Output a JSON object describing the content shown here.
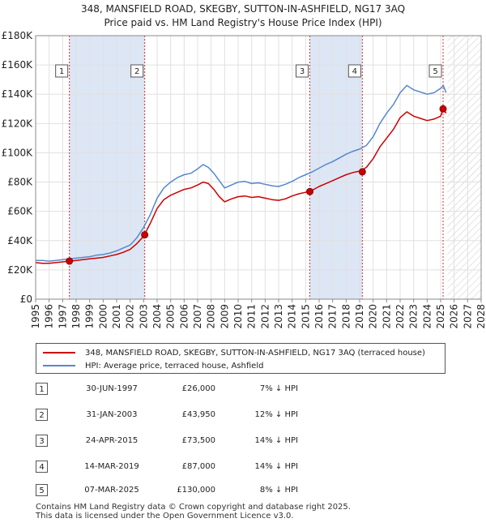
{
  "chart_data": {
    "type": "line",
    "title": "348, MANSFIELD ROAD, SKEGBY, SUTTON-IN-ASHFIELD, NG17 3AQ",
    "subtitle": "Price paid vs. HM Land Registry's House Price Index (HPI)",
    "xlim": [
      1995,
      2028
    ],
    "ylim": [
      0,
      180000
    ],
    "x_ticks": [
      "1995",
      "1996",
      "1997",
      "1998",
      "1999",
      "2000",
      "2001",
      "2002",
      "2003",
      "2004",
      "2005",
      "2006",
      "2007",
      "2008",
      "2009",
      "2010",
      "2011",
      "2012",
      "2013",
      "2014",
      "2015",
      "2016",
      "2017",
      "2018",
      "2019",
      "2020",
      "2021",
      "2022",
      "2023",
      "2024",
      "2025",
      "2026",
      "2027",
      "2028"
    ],
    "y_ticks": [
      {
        "value": 0,
        "label": "£0"
      },
      {
        "value": 20000,
        "label": "£20K"
      },
      {
        "value": 40000,
        "label": "£40K"
      },
      {
        "value": 60000,
        "label": "£60K"
      },
      {
        "value": 80000,
        "label": "£80K"
      },
      {
        "value": 100000,
        "label": "£100K"
      },
      {
        "value": 120000,
        "label": "£120K"
      },
      {
        "value": 140000,
        "label": "£140K"
      },
      {
        "value": 160000,
        "label": "£160K"
      },
      {
        "value": 180000,
        "label": "£180K"
      }
    ],
    "grid": true,
    "shaded_periods": [
      [
        1997.5,
        2003.08
      ],
      [
        2015.31,
        2019.2
      ]
    ],
    "future_hatch_start": 2025.5,
    "series": [
      {
        "name": "348, MANSFIELD ROAD, SKEGBY, SUTTON-IN-ASHFIELD, NG17 3AQ (terraced house)",
        "color": "#cc0000",
        "x": [
          1995.0,
          1995.5,
          1996.0,
          1996.5,
          1997.0,
          1997.5,
          1998.0,
          1998.5,
          1999.0,
          1999.5,
          2000.0,
          2000.5,
          2001.0,
          2001.5,
          2002.0,
          2002.5,
          2003.0,
          2003.5,
          2004.0,
          2004.5,
          2005.0,
          2005.5,
          2006.0,
          2006.5,
          2007.0,
          2007.4,
          2007.8,
          2008.2,
          2008.6,
          2009.0,
          2009.5,
          2010.0,
          2010.5,
          2011.0,
          2011.5,
          2012.0,
          2012.5,
          2013.0,
          2013.5,
          2014.0,
          2014.5,
          2015.0,
          2015.5,
          2016.0,
          2016.5,
          2017.0,
          2017.5,
          2018.0,
          2018.5,
          2019.0,
          2019.5,
          2020.0,
          2020.5,
          2021.0,
          2021.5,
          2022.0,
          2022.5,
          2023.0,
          2023.5,
          2024.0,
          2024.5,
          2025.0,
          2025.2,
          2025.4
        ],
        "values": [
          25000,
          24500,
          24500,
          25000,
          25500,
          26000,
          26500,
          27000,
          27500,
          28000,
          28500,
          29500,
          30500,
          32000,
          34000,
          38000,
          43000,
          52000,
          62000,
          68000,
          71000,
          73000,
          75000,
          76000,
          78000,
          80000,
          79000,
          75000,
          70000,
          66500,
          68500,
          70000,
          70500,
          69500,
          70000,
          69000,
          68000,
          67500,
          68500,
          70500,
          72000,
          73000,
          74500,
          77000,
          79000,
          81000,
          83000,
          85000,
          86500,
          87500,
          90000,
          96000,
          104000,
          110000,
          116000,
          124000,
          128000,
          125000,
          123500,
          122000,
          123000,
          125000,
          130000,
          127000
        ]
      },
      {
        "name": "HPI: Average price, terraced house, Ashfield",
        "color": "#5588cc",
        "x": [
          1995.0,
          1995.5,
          1996.0,
          1996.5,
          1997.0,
          1997.5,
          1998.0,
          1998.5,
          1999.0,
          1999.5,
          2000.0,
          2000.5,
          2001.0,
          2001.5,
          2002.0,
          2002.5,
          2003.0,
          2003.5,
          2004.0,
          2004.5,
          2005.0,
          2005.5,
          2006.0,
          2006.5,
          2007.0,
          2007.4,
          2007.8,
          2008.2,
          2008.6,
          2009.0,
          2009.5,
          2010.0,
          2010.5,
          2011.0,
          2011.5,
          2012.0,
          2012.5,
          2013.0,
          2013.5,
          2014.0,
          2014.5,
          2015.0,
          2015.5,
          2016.0,
          2016.5,
          2017.0,
          2017.5,
          2018.0,
          2018.5,
          2019.0,
          2019.5,
          2020.0,
          2020.5,
          2021.0,
          2021.5,
          2022.0,
          2022.5,
          2023.0,
          2023.5,
          2024.0,
          2024.5,
          2025.0,
          2025.2,
          2025.4
        ],
        "values": [
          26500,
          26500,
          26000,
          26500,
          27000,
          27500,
          28000,
          28500,
          29000,
          30000,
          30500,
          31500,
          33000,
          35000,
          37000,
          42000,
          49000,
          58000,
          69000,
          76000,
          80000,
          83000,
          85000,
          86000,
          89000,
          92000,
          90000,
          86000,
          81000,
          76000,
          78000,
          80000,
          80500,
          79000,
          79500,
          78500,
          77500,
          77000,
          78500,
          80500,
          83000,
          85000,
          87000,
          89500,
          92000,
          94000,
          96500,
          99000,
          101000,
          102500,
          105000,
          111000,
          120000,
          127000,
          133000,
          141000,
          146000,
          143000,
          141500,
          140000,
          141000,
          144000,
          146000,
          141000
        ]
      }
    ],
    "sales": [
      {
        "n": "1",
        "x": 1997.5,
        "price": 26000
      },
      {
        "n": "2",
        "x": 2003.08,
        "price": 43950
      },
      {
        "n": "3",
        "x": 2015.31,
        "price": 73500
      },
      {
        "n": "4",
        "x": 2019.2,
        "price": 87000
      },
      {
        "n": "5",
        "x": 2025.18,
        "price": 130000
      }
    ]
  },
  "legend": {
    "property": "348, MANSFIELD ROAD, SKEGBY, SUTTON-IN-ASHFIELD, NG17 3AQ (terraced house)",
    "hpi": "HPI: Average price, terraced house, Ashfield"
  },
  "sales_table": [
    {
      "num": "1",
      "date": "30-JUN-1997",
      "price": "£26,000",
      "hpi": "7% ↓ HPI"
    },
    {
      "num": "2",
      "date": "31-JAN-2003",
      "price": "£43,950",
      "hpi": "12% ↓ HPI"
    },
    {
      "num": "3",
      "date": "24-APR-2015",
      "price": "£73,500",
      "hpi": "14% ↓ HPI"
    },
    {
      "num": "4",
      "date": "14-MAR-2019",
      "price": "£87,000",
      "hpi": "14% ↓ HPI"
    },
    {
      "num": "5",
      "date": "07-MAR-2025",
      "price": "£130,000",
      "hpi": "8% ↓ HPI"
    }
  ],
  "footer": {
    "line1": "Contains HM Land Registry data © Crown copyright and database right 2025.",
    "line2": "This data is licensed under the Open Government Licence v3.0."
  }
}
